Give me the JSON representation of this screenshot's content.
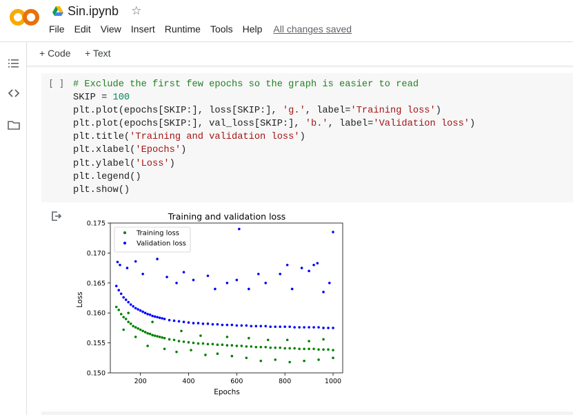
{
  "app": {
    "logo_text": "CO",
    "notebook_title": "Sin.ipynb",
    "icons": {
      "drive": "google-drive-icon",
      "star": "star-icon",
      "menu": "hamburger-icon",
      "code": "code-brackets-icon",
      "files": "folder-icon",
      "output": "output-icon"
    }
  },
  "menu": {
    "items": [
      "File",
      "Edit",
      "View",
      "Insert",
      "Runtime",
      "Tools",
      "Help"
    ],
    "saved_status": "All changes saved"
  },
  "toolbar": {
    "add_code": "+ Code",
    "add_text": "+ Text"
  },
  "cell": {
    "bracket": "[ ]",
    "lines": [
      "# Exclude the first few epochs so the graph is easier to read",
      "SKIP = 100",
      "plt.plot(epochs[SKIP:], loss[SKIP:], 'g.', label='Training loss')",
      "plt.plot(epochs[SKIP:], val_loss[SKIP:], 'b.', label='Validation loss')",
      "plt.title('Training and validation loss')",
      "plt.xlabel('Epochs')",
      "plt.ylabel('Loss')",
      "plt.legend()",
      "plt.show()"
    ]
  },
  "chart_data": {
    "type": "scatter",
    "title": "Training and validation loss",
    "xlabel": "Epochs",
    "ylabel": "Loss",
    "xlim": [
      75,
      1040
    ],
    "ylim": [
      0.15,
      0.175
    ],
    "xticks": [
      200,
      400,
      600,
      800,
      1000
    ],
    "yticks": [
      0.15,
      0.155,
      0.16,
      0.165,
      0.17,
      0.175
    ],
    "ytick_labels": [
      "0.150",
      "0.155",
      "0.160",
      "0.165",
      "0.170",
      "0.175"
    ],
    "legend_position": "top-left",
    "grid": false,
    "series": [
      {
        "name": "Training loss",
        "color": "#008000",
        "x": [
          100,
          110,
          120,
          130,
          140,
          150,
          160,
          170,
          180,
          190,
          200,
          210,
          220,
          230,
          240,
          250,
          260,
          270,
          280,
          290,
          300,
          320,
          340,
          360,
          380,
          400,
          420,
          440,
          460,
          480,
          500,
          520,
          540,
          560,
          580,
          600,
          620,
          640,
          660,
          680,
          700,
          720,
          740,
          760,
          780,
          800,
          820,
          840,
          860,
          880,
          900,
          920,
          940,
          960,
          980,
          1000,
          130,
          180,
          230,
          300,
          350,
          410,
          470,
          520,
          580,
          640,
          700,
          760,
          820,
          880,
          940,
          1000,
          150,
          250,
          370,
          450,
          560,
          650,
          730,
          810,
          900,
          960
        ],
        "y": [
          0.161,
          0.1605,
          0.1598,
          0.1593,
          0.159,
          0.1585,
          0.1582,
          0.1578,
          0.1576,
          0.1574,
          0.1572,
          0.157,
          0.1568,
          0.1566,
          0.1565,
          0.1563,
          0.1562,
          0.1561,
          0.156,
          0.1559,
          0.1558,
          0.1556,
          0.1555,
          0.1553,
          0.1552,
          0.1551,
          0.155,
          0.1549,
          0.1549,
          0.1548,
          0.1548,
          0.1547,
          0.1547,
          0.1546,
          0.1546,
          0.1545,
          0.1545,
          0.1544,
          0.1544,
          0.1543,
          0.1543,
          0.1543,
          0.1542,
          0.1542,
          0.1542,
          0.1541,
          0.1541,
          0.1541,
          0.154,
          0.154,
          0.154,
          0.154,
          0.1539,
          0.1539,
          0.1539,
          0.1538,
          0.1572,
          0.156,
          0.1545,
          0.154,
          0.1535,
          0.1538,
          0.153,
          0.1532,
          0.1528,
          0.1525,
          0.152,
          0.1522,
          0.1518,
          0.152,
          0.1522,
          0.1525,
          0.16,
          0.1585,
          0.157,
          0.1562,
          0.156,
          0.1558,
          0.1555,
          0.1555,
          0.1553,
          0.1556
        ]
      },
      {
        "name": "Validation loss",
        "color": "#0000ff",
        "x": [
          100,
          110,
          120,
          130,
          140,
          150,
          160,
          170,
          180,
          190,
          200,
          210,
          220,
          230,
          240,
          250,
          260,
          270,
          280,
          290,
          300,
          320,
          340,
          360,
          380,
          400,
          420,
          440,
          460,
          480,
          500,
          520,
          540,
          560,
          580,
          600,
          620,
          640,
          660,
          680,
          700,
          720,
          740,
          760,
          780,
          800,
          820,
          840,
          860,
          880,
          900,
          920,
          940,
          960,
          980,
          1000,
          105,
          115,
          145,
          180,
          210,
          270,
          290,
          310,
          350,
          380,
          420,
          480,
          510,
          560,
          600,
          610,
          650,
          690,
          720,
          780,
          810,
          830,
          870,
          900,
          920,
          935,
          960,
          985,
          1000
        ],
        "y": [
          0.1645,
          0.1638,
          0.1632,
          0.1626,
          0.1622,
          0.1618,
          0.1614,
          0.1611,
          0.1608,
          0.1606,
          0.1604,
          0.1602,
          0.16,
          0.1598,
          0.1597,
          0.1595,
          0.1594,
          0.1593,
          0.1592,
          0.1591,
          0.159,
          0.1588,
          0.1587,
          0.1586,
          0.1585,
          0.1584,
          0.1583,
          0.1583,
          0.1582,
          0.1582,
          0.1581,
          0.1581,
          0.158,
          0.158,
          0.158,
          0.1579,
          0.1579,
          0.1579,
          0.1578,
          0.1578,
          0.1578,
          0.1578,
          0.1577,
          0.1577,
          0.1577,
          0.1577,
          0.1577,
          0.1576,
          0.1576,
          0.1576,
          0.1576,
          0.1576,
          0.1576,
          0.1575,
          0.1575,
          0.1575,
          0.1685,
          0.168,
          0.1675,
          0.1686,
          0.1665,
          0.169,
          0.1705,
          0.166,
          0.165,
          0.1668,
          0.1655,
          0.1662,
          0.164,
          0.165,
          0.1655,
          0.174,
          0.164,
          0.1665,
          0.165,
          0.1665,
          0.168,
          0.164,
          0.1675,
          0.167,
          0.168,
          0.1683,
          0.1635,
          0.165,
          0.1735
        ]
      }
    ]
  }
}
